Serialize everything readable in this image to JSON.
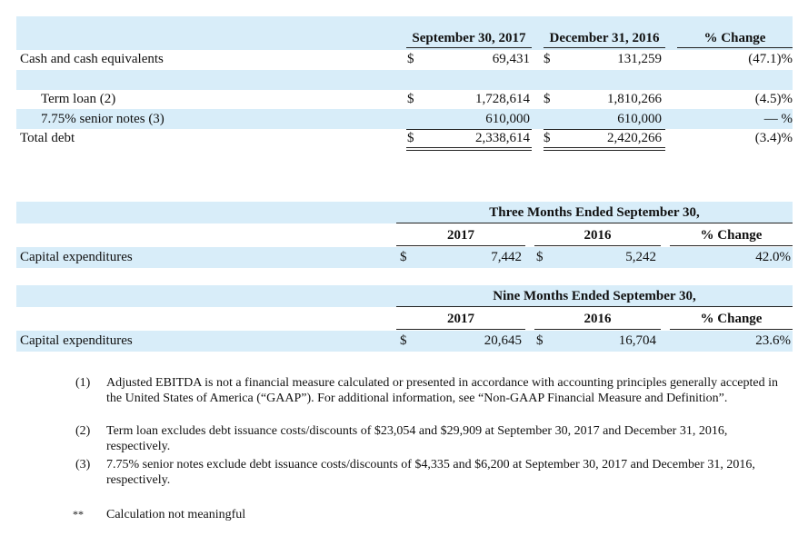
{
  "debt_table": {
    "headers": [
      "September 30, 2017",
      "December 31, 2016",
      "% Change"
    ],
    "rows": [
      {
        "label": "Cash and cash equivalents",
        "cur1": "$",
        "v1": "69,431",
        "cur2": "$",
        "v2": "131,259",
        "change": "(47.1)%"
      },
      {
        "label": "Term loan (2)",
        "cur1": "$",
        "v1": "1,728,614",
        "cur2": "$",
        "v2": "1,810,266",
        "change": "(4.5)%"
      },
      {
        "label": "7.75% senior notes (3)",
        "v1": "610,000",
        "v2": "610,000",
        "change": "— %"
      },
      {
        "label": "Total debt",
        "cur1": "$",
        "v1": "2,338,614",
        "cur2": "$",
        "v2": "2,420,266",
        "change": "(3.4)%"
      }
    ]
  },
  "capex_tables": [
    {
      "period": "Three Months Ended September 30,",
      "headers": [
        "2017",
        "2016",
        "% Change"
      ],
      "row": {
        "label": "Capital expenditures",
        "cur1": "$",
        "v1": "7,442",
        "cur2": "$",
        "v2": "5,242",
        "change": "42.0%"
      }
    },
    {
      "period": "Nine Months Ended September 30,",
      "headers": [
        "2017",
        "2016",
        "% Change"
      ],
      "row": {
        "label": "Capital expenditures",
        "cur1": "$",
        "v1": "20,645",
        "cur2": "$",
        "v2": "16,704",
        "change": "23.6%"
      }
    }
  ],
  "footnotes": [
    {
      "marker": "(1)",
      "text": "Adjusted EBITDA is not a financial measure calculated or presented in accordance with accounting principles generally accepted in the United States of America (“GAAP”). For additional information, see “Non-GAAP Financial Measure and Definition”."
    },
    {
      "marker": "(2)",
      "text": "Term loan excludes debt issuance costs/discounts of $23,054 and $29,909 at September 30, 2017 and December 31, 2016, respectively."
    },
    {
      "marker": "(3)",
      "text": "7.75% senior notes exclude debt issuance costs/discounts of $4,335 and $6,200 at September 30, 2017 and December 31, 2016, respectively."
    }
  ],
  "note": {
    "marker": "**",
    "text": "Calculation not meaningful"
  }
}
